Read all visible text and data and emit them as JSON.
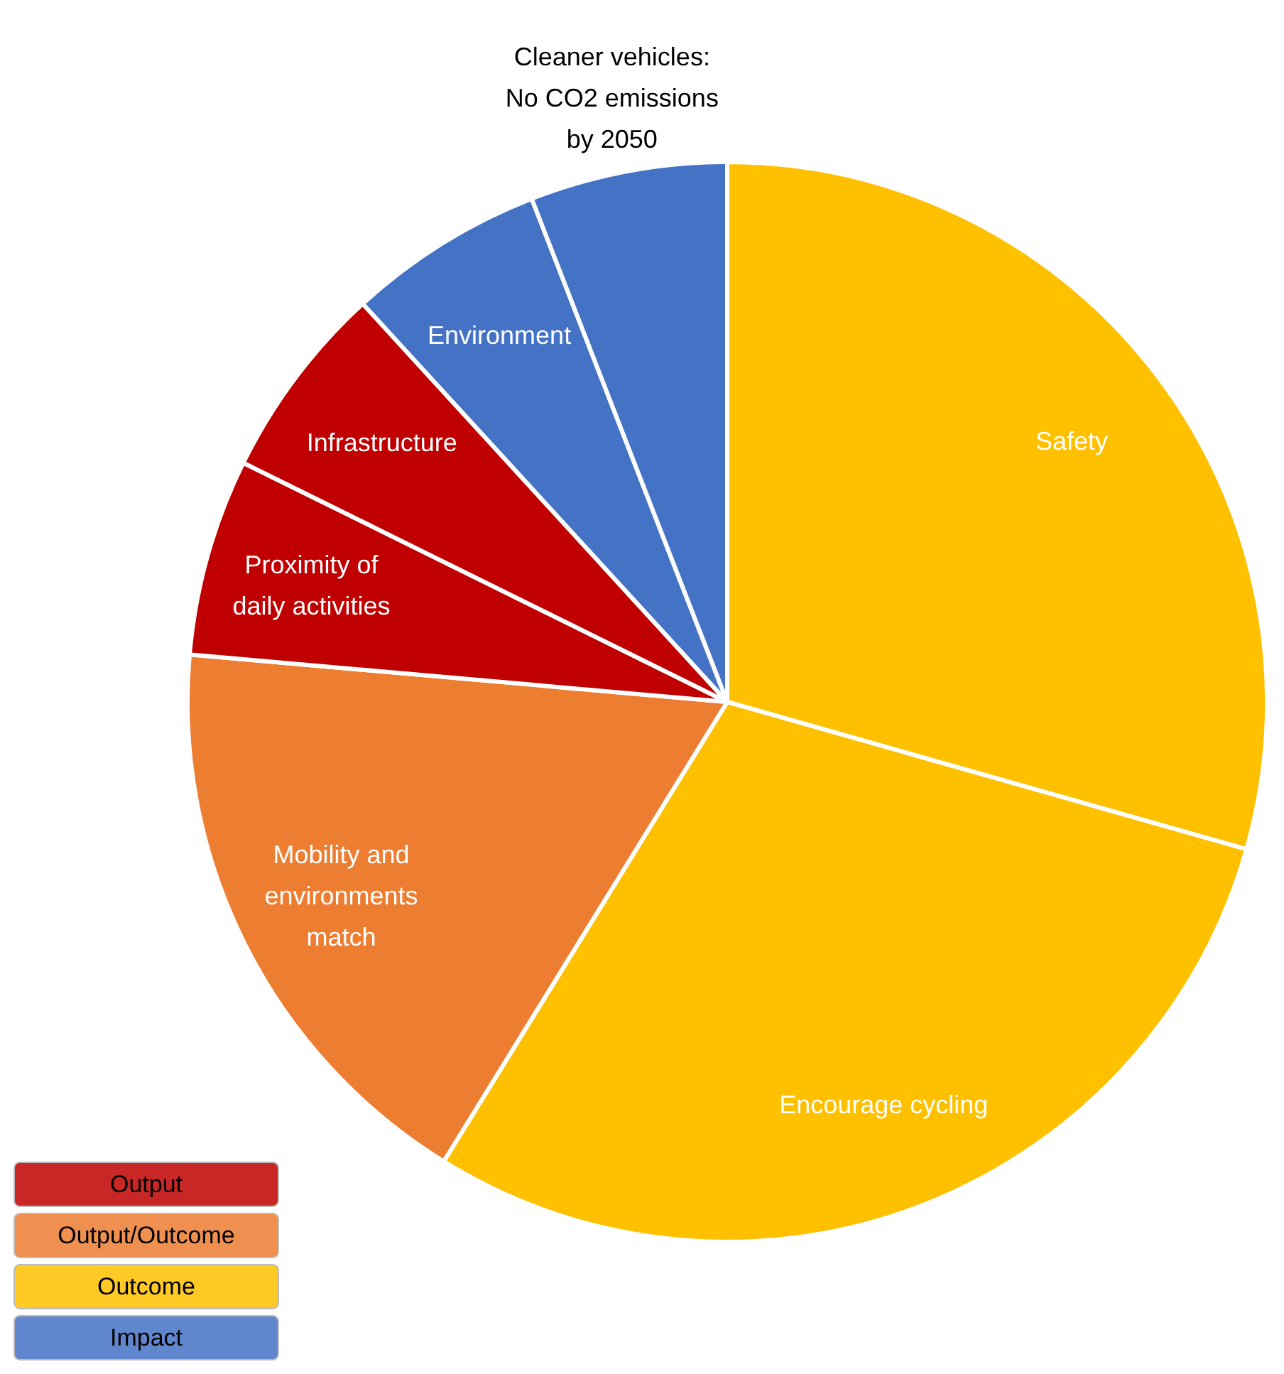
{
  "chart_data": {
    "type": "pie",
    "categories": [
      "Safety",
      "Encourage cycling",
      "Mobility and environments match",
      "Proximity of daily activities",
      "Infrastructure",
      "Environment",
      "Cleaner vehicles: No CO2 emissions by 2050"
    ],
    "values": [
      29.4,
      29.4,
      17.6,
      5.9,
      5.9,
      5.9,
      5.9
    ],
    "colors": [
      "#ffc000",
      "#ffc000",
      "#ed7d31",
      "#c00000",
      "#c00000",
      "#4472c4",
      "#4472c4"
    ],
    "annotations": [
      "Output",
      "Output/Outcome",
      "Outcome",
      "Impact"
    ]
  }
}
